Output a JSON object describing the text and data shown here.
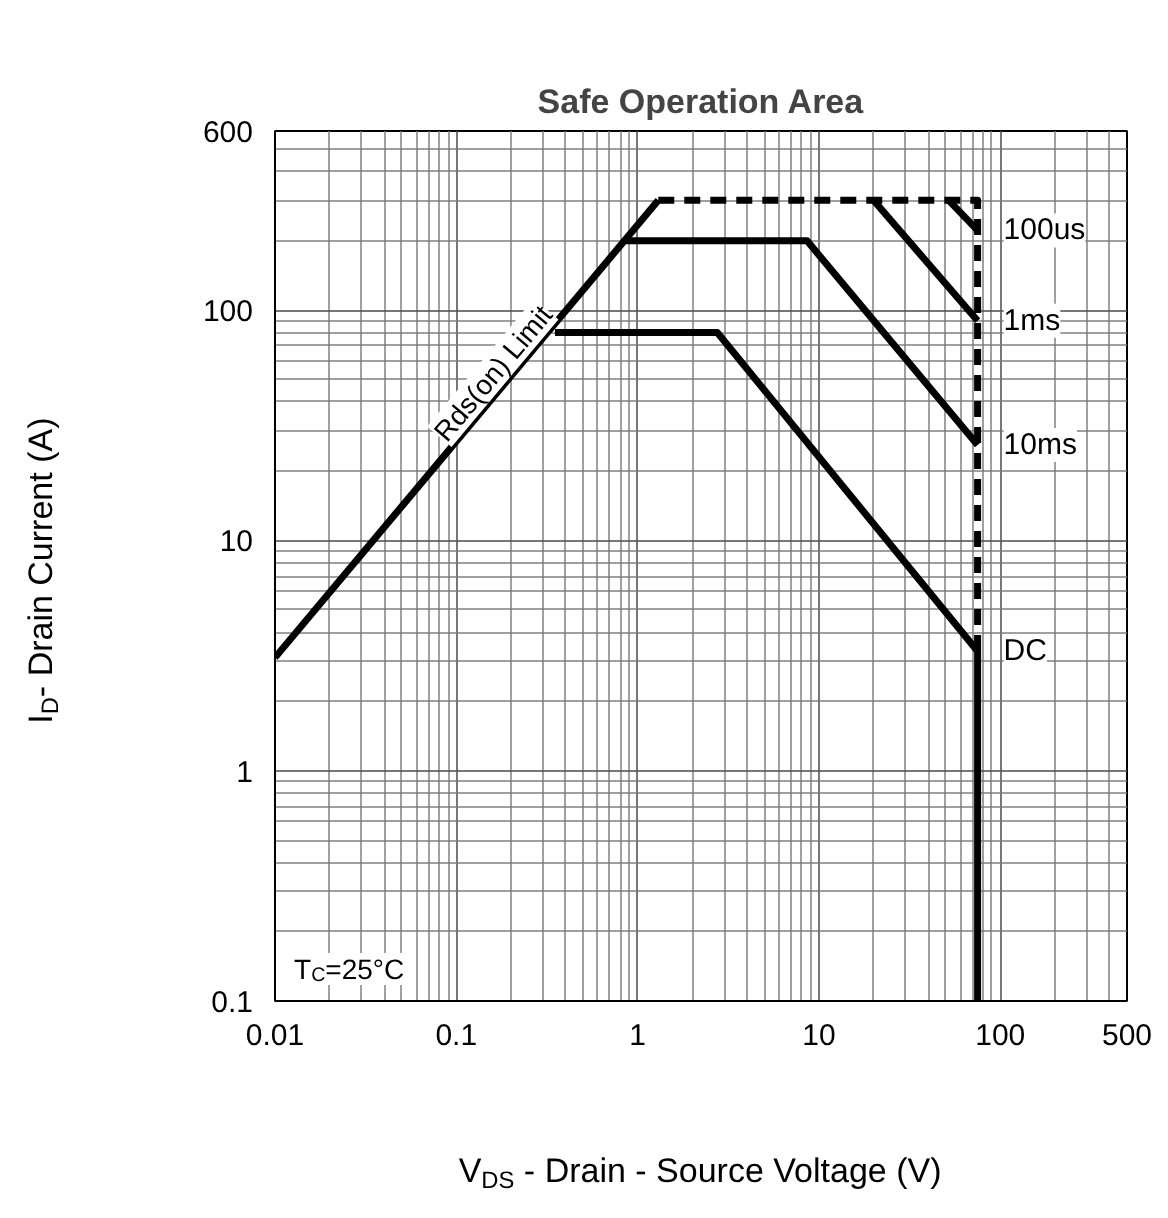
{
  "chart_data": {
    "type": "line",
    "title": "Safe Operation Area",
    "xlabel": "V$_{DS}$ - Drain - Source Voltage (V)",
    "ylabel": "I$_{D}$- Drain Current (A)",
    "log": "xy",
    "xlim": [
      0.01,
      500
    ],
    "ylim": [
      0.1,
      600
    ],
    "xticks": [
      0.01,
      0.1,
      1,
      10,
      100,
      500
    ],
    "yticks": [
      0.1,
      1,
      10,
      100,
      600
    ],
    "grid": true,
    "marker": "none",
    "series": [
      {
        "name": "Rds(on) Limit",
        "color": "#000000",
        "line_style": "solid",
        "x": [
          0.01,
          1.3
        ],
        "values": [
          3.1,
          300
        ]
      },
      {
        "name": "DC",
        "color": "#000000",
        "line_style": "solid",
        "x": [
          0.35,
          2.75,
          75,
          75
        ],
        "values": [
          80,
          80,
          3.3,
          0.1
        ]
      },
      {
        "name": "10ms",
        "color": "#000000",
        "line_style": "solid",
        "x": [
          0.86,
          8.6,
          75
        ],
        "values": [
          200,
          200,
          26
        ]
      },
      {
        "name": "1ms",
        "color": "#000000",
        "line_style": "solid",
        "x": [
          20,
          75
        ],
        "values": [
          300,
          90
        ]
      },
      {
        "name": "100us",
        "color": "#000000",
        "line_style": "solid",
        "x": [
          52,
          75
        ],
        "values": [
          300,
          222
        ]
      },
      {
        "color": "#000000",
        "line_style": "dashed",
        "x": [
          1.3,
          75,
          75
        ],
        "values": [
          300,
          300,
          3.3
        ]
      }
    ],
    "annotations": [
      "T$_{C}$=25°C"
    ]
  }
}
